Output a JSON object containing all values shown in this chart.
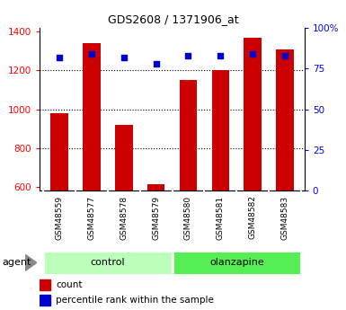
{
  "title": "GDS2608 / 1371906_at",
  "samples": [
    "GSM48559",
    "GSM48577",
    "GSM48578",
    "GSM48579",
    "GSM48580",
    "GSM48581",
    "GSM48582",
    "GSM48583"
  ],
  "counts": [
    980,
    1340,
    920,
    615,
    1150,
    1200,
    1370,
    1310
  ],
  "percentiles": [
    82,
    84,
    82,
    78,
    83,
    83,
    84,
    83
  ],
  "groups": [
    {
      "label": "control",
      "color": "#bbffbb",
      "n": 4
    },
    {
      "label": "olanzapine",
      "color": "#55ee55",
      "n": 4
    }
  ],
  "group_label": "agent",
  "bar_color": "#cc0000",
  "dot_color": "#0000cc",
  "ylim_left": [
    580,
    1420
  ],
  "ylim_right": [
    0,
    100
  ],
  "yticks_left": [
    600,
    800,
    1000,
    1200,
    1400
  ],
  "yticks_right": [
    0,
    25,
    50,
    75,
    100
  ],
  "yticklabels_right": [
    "0",
    "25",
    "50",
    "75",
    "100%"
  ],
  "grid_values": [
    800,
    1000,
    1200
  ],
  "bar_width": 0.55,
  "legend_count_label": "count",
  "legend_pct_label": "percentile rank within the sample",
  "bg_color": "#ffffff",
  "tick_label_bg": "#cccccc",
  "title_fontsize": 9
}
